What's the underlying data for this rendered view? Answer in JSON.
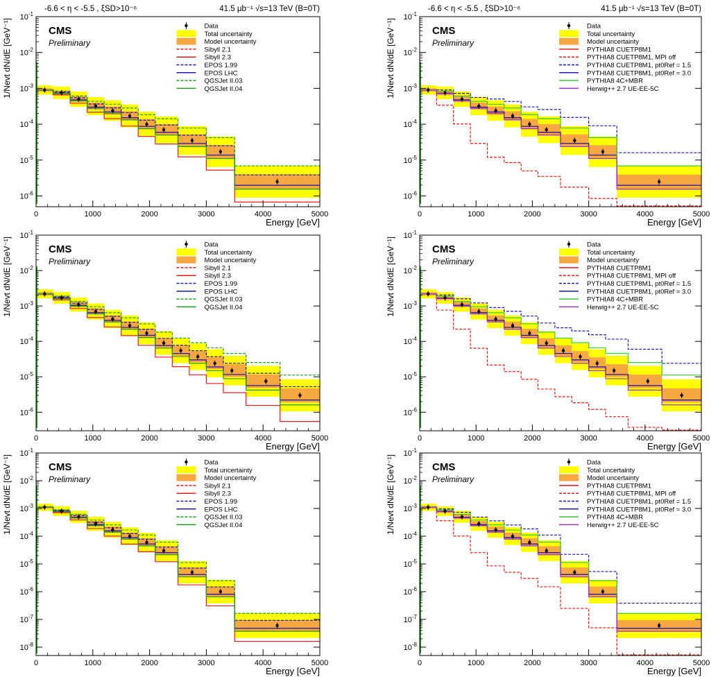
{
  "chart_data": [
    {
      "type": "line",
      "header_left": "-6.6 < η < -5.5 , ξSD>10⁻⁶",
      "header_right": "41.5 μb⁻¹ √s=13 TeV (B=0T)",
      "cms": "CMS",
      "preliminary": "Preliminary",
      "xlabel": "Energy [GeV]",
      "ylabel": "1/Nevt dN/dE [GeV⁻¹]",
      "xlim": [
        0,
        5000
      ],
      "ylim": [
        5e-07,
        0.1
      ],
      "yscale": "log",
      "xticks": [
        0,
        1000,
        2000,
        3000,
        4000,
        5000
      ],
      "legend": [
        "Data",
        "Total uncertainty",
        "Model uncertainty",
        "Sibyll 2.1",
        "Sibyll 2.3",
        "EPOS 1.99",
        "EPOS LHC",
        "QGSJet II.03",
        "QGSJet II.04"
      ],
      "data": {
        "x": [
          150,
          450,
          750,
          1050,
          1350,
          1650,
          1950,
          2250,
          2750,
          3250,
          4250
        ],
        "y": [
          0.0009,
          0.00075,
          0.0005,
          0.00032,
          0.00024,
          0.00017,
          0.0001,
          7e-05,
          3.5e-05,
          1.7e-05,
          2.5e-06
        ]
      }
    },
    {
      "type": "line",
      "header_left": "-6.6 < η < -5.5 , ξSD>10⁻⁶",
      "header_right": "41.5 μb⁻¹ √s=13 TeV (B=0T)",
      "cms": "CMS",
      "preliminary": "Preliminary",
      "xlabel": "Energy [GeV]",
      "ylabel": "1/Nevt dN/dE [GeV⁻¹]",
      "xlim": [
        0,
        5000
      ],
      "ylim": [
        5e-07,
        0.1
      ],
      "yscale": "log",
      "xticks": [
        0,
        1000,
        2000,
        3000,
        4000,
        5000
      ],
      "legend": [
        "Data",
        "Total uncertainty",
        "Model uncertainty",
        "PYTHIA8 CUETP8M1",
        "PYTHIA8 CUETP8M1, MPI off",
        "PYTHIA8 CUETP8M1, pt0Ref = 1.5",
        "PYTHIA8 CUETP8M1, pt0Ref = 3.0",
        "PYTHIA8 4C+MBR",
        "Herwig++ 2.7 UE-EE-5C"
      ],
      "data": {
        "x": [
          150,
          450,
          750,
          1050,
          1350,
          1650,
          1950,
          2250,
          2750,
          3250,
          4250
        ],
        "y": [
          0.0009,
          0.00075,
          0.0005,
          0.00032,
          0.00024,
          0.00017,
          0.0001,
          7e-05,
          3.5e-05,
          1.7e-05,
          2.5e-06
        ]
      }
    },
    {
      "type": "line",
      "cms": "CMS",
      "preliminary": "Preliminary",
      "xlabel": "Energy [GeV]",
      "ylabel": "1/Nevt dN/dE [GeV⁻¹]",
      "xlim": [
        0,
        5000
      ],
      "ylim": [
        3e-07,
        0.1
      ],
      "yscale": "log",
      "xticks": [
        0,
        1000,
        2000,
        3000,
        4000,
        5000
      ],
      "legend": [
        "Data",
        "Total uncertainty",
        "Model uncertainty",
        "Sibyll 2.1",
        "Sibyll 2.3",
        "EPOS 1.99",
        "EPOS LHC",
        "QGSJet II.03",
        "QGSJet II.04"
      ],
      "data": {
        "x": [
          150,
          450,
          750,
          1050,
          1350,
          1650,
          1950,
          2250,
          2550,
          2850,
          3150,
          3450,
          4050,
          4650
        ],
        "y": [
          0.0022,
          0.0017,
          0.0011,
          0.0007,
          0.00043,
          0.00028,
          0.00017,
          9e-05,
          5.5e-05,
          3.7e-05,
          2.4e-05,
          1.5e-05,
          7.5e-06,
          3e-06
        ]
      }
    },
    {
      "type": "line",
      "cms": "CMS",
      "preliminary": "Preliminary",
      "xlabel": "Energy [GeV]",
      "ylabel": "1/Nevt dN/dE [GeV⁻¹]",
      "xlim": [
        0,
        5000
      ],
      "ylim": [
        3e-07,
        0.1
      ],
      "yscale": "log",
      "xticks": [
        0,
        1000,
        2000,
        3000,
        4000,
        5000
      ],
      "legend": [
        "Data",
        "Total uncertainty",
        "Model uncertainty",
        "PYTHIA8 CUETP8M1",
        "PYTHIA8 CUETP8M1, MPI off",
        "PYTHIA8 CUETP8M1, pt0Ref = 1.5",
        "PYTHIA8 CUETP8M1, pt0Ref = 3.0",
        "PYTHIA8 4C+MBR",
        "Herwig++ 2.7 UE-EE-5C"
      ],
      "data": {
        "x": [
          150,
          450,
          750,
          1050,
          1350,
          1650,
          1950,
          2250,
          2550,
          2850,
          3150,
          3450,
          4050,
          4650
        ],
        "y": [
          0.0022,
          0.0017,
          0.0011,
          0.0007,
          0.00043,
          0.00028,
          0.00017,
          9e-05,
          5.5e-05,
          3.7e-05,
          2.4e-05,
          1.5e-05,
          7.5e-06,
          3e-06
        ]
      }
    },
    {
      "type": "line",
      "cms": "CMS",
      "preliminary": "Preliminary",
      "xlabel": "Energy [GeV]",
      "ylabel": "1/Nevt dN/dE [GeV⁻¹]",
      "xlim": [
        0,
        5000
      ],
      "ylim": [
        5e-09,
        0.1
      ],
      "yscale": "log",
      "xticks": [
        0,
        1000,
        2000,
        3000,
        4000,
        5000
      ],
      "legend": [
        "Data",
        "Total uncertainty",
        "Model uncertainty",
        "Sibyll 2.1",
        "Sibyll 2.3",
        "EPOS 1.99",
        "EPOS LHC",
        "QGSJet II.03",
        "QGSJet II.04"
      ],
      "data": {
        "x": [
          150,
          450,
          750,
          1050,
          1350,
          1650,
          1950,
          2250,
          2750,
          3250,
          4250
        ],
        "y": [
          0.0011,
          0.0008,
          0.0005,
          0.00028,
          0.00017,
          0.0001,
          6e-05,
          3e-05,
          5e-06,
          1e-06,
          6e-08
        ]
      }
    },
    {
      "type": "line",
      "cms": "CMS",
      "preliminary": "Preliminary",
      "xlabel": "Energy [GeV]",
      "ylabel": "1/Nevt dN/dE [GeV⁻¹]",
      "xlim": [
        0,
        5000
      ],
      "ylim": [
        5e-09,
        0.1
      ],
      "yscale": "log",
      "xticks": [
        0,
        1000,
        2000,
        3000,
        4000,
        5000
      ],
      "legend": [
        "Data",
        "Total uncertainty",
        "Model uncertainty",
        "PYTHIA8 CUETP8M1",
        "PYTHIA8 CUETP8M1, MPI off",
        "PYTHIA8 CUETP8M1, pt0Ref = 1.5",
        "PYTHIA8 CUETP8M1, pt0Ref = 3.0",
        "PYTHIA8 4C+MBR",
        "Herwig++ 2.7 UE-EE-5C"
      ],
      "data": {
        "x": [
          150,
          450,
          750,
          1050,
          1350,
          1650,
          1950,
          2250,
          2750,
          3250,
          4250
        ],
        "y": [
          0.0011,
          0.0008,
          0.0005,
          0.00028,
          0.00017,
          0.0001,
          6e-05,
          3e-05,
          5e-06,
          1e-06,
          6e-08
        ]
      }
    }
  ]
}
